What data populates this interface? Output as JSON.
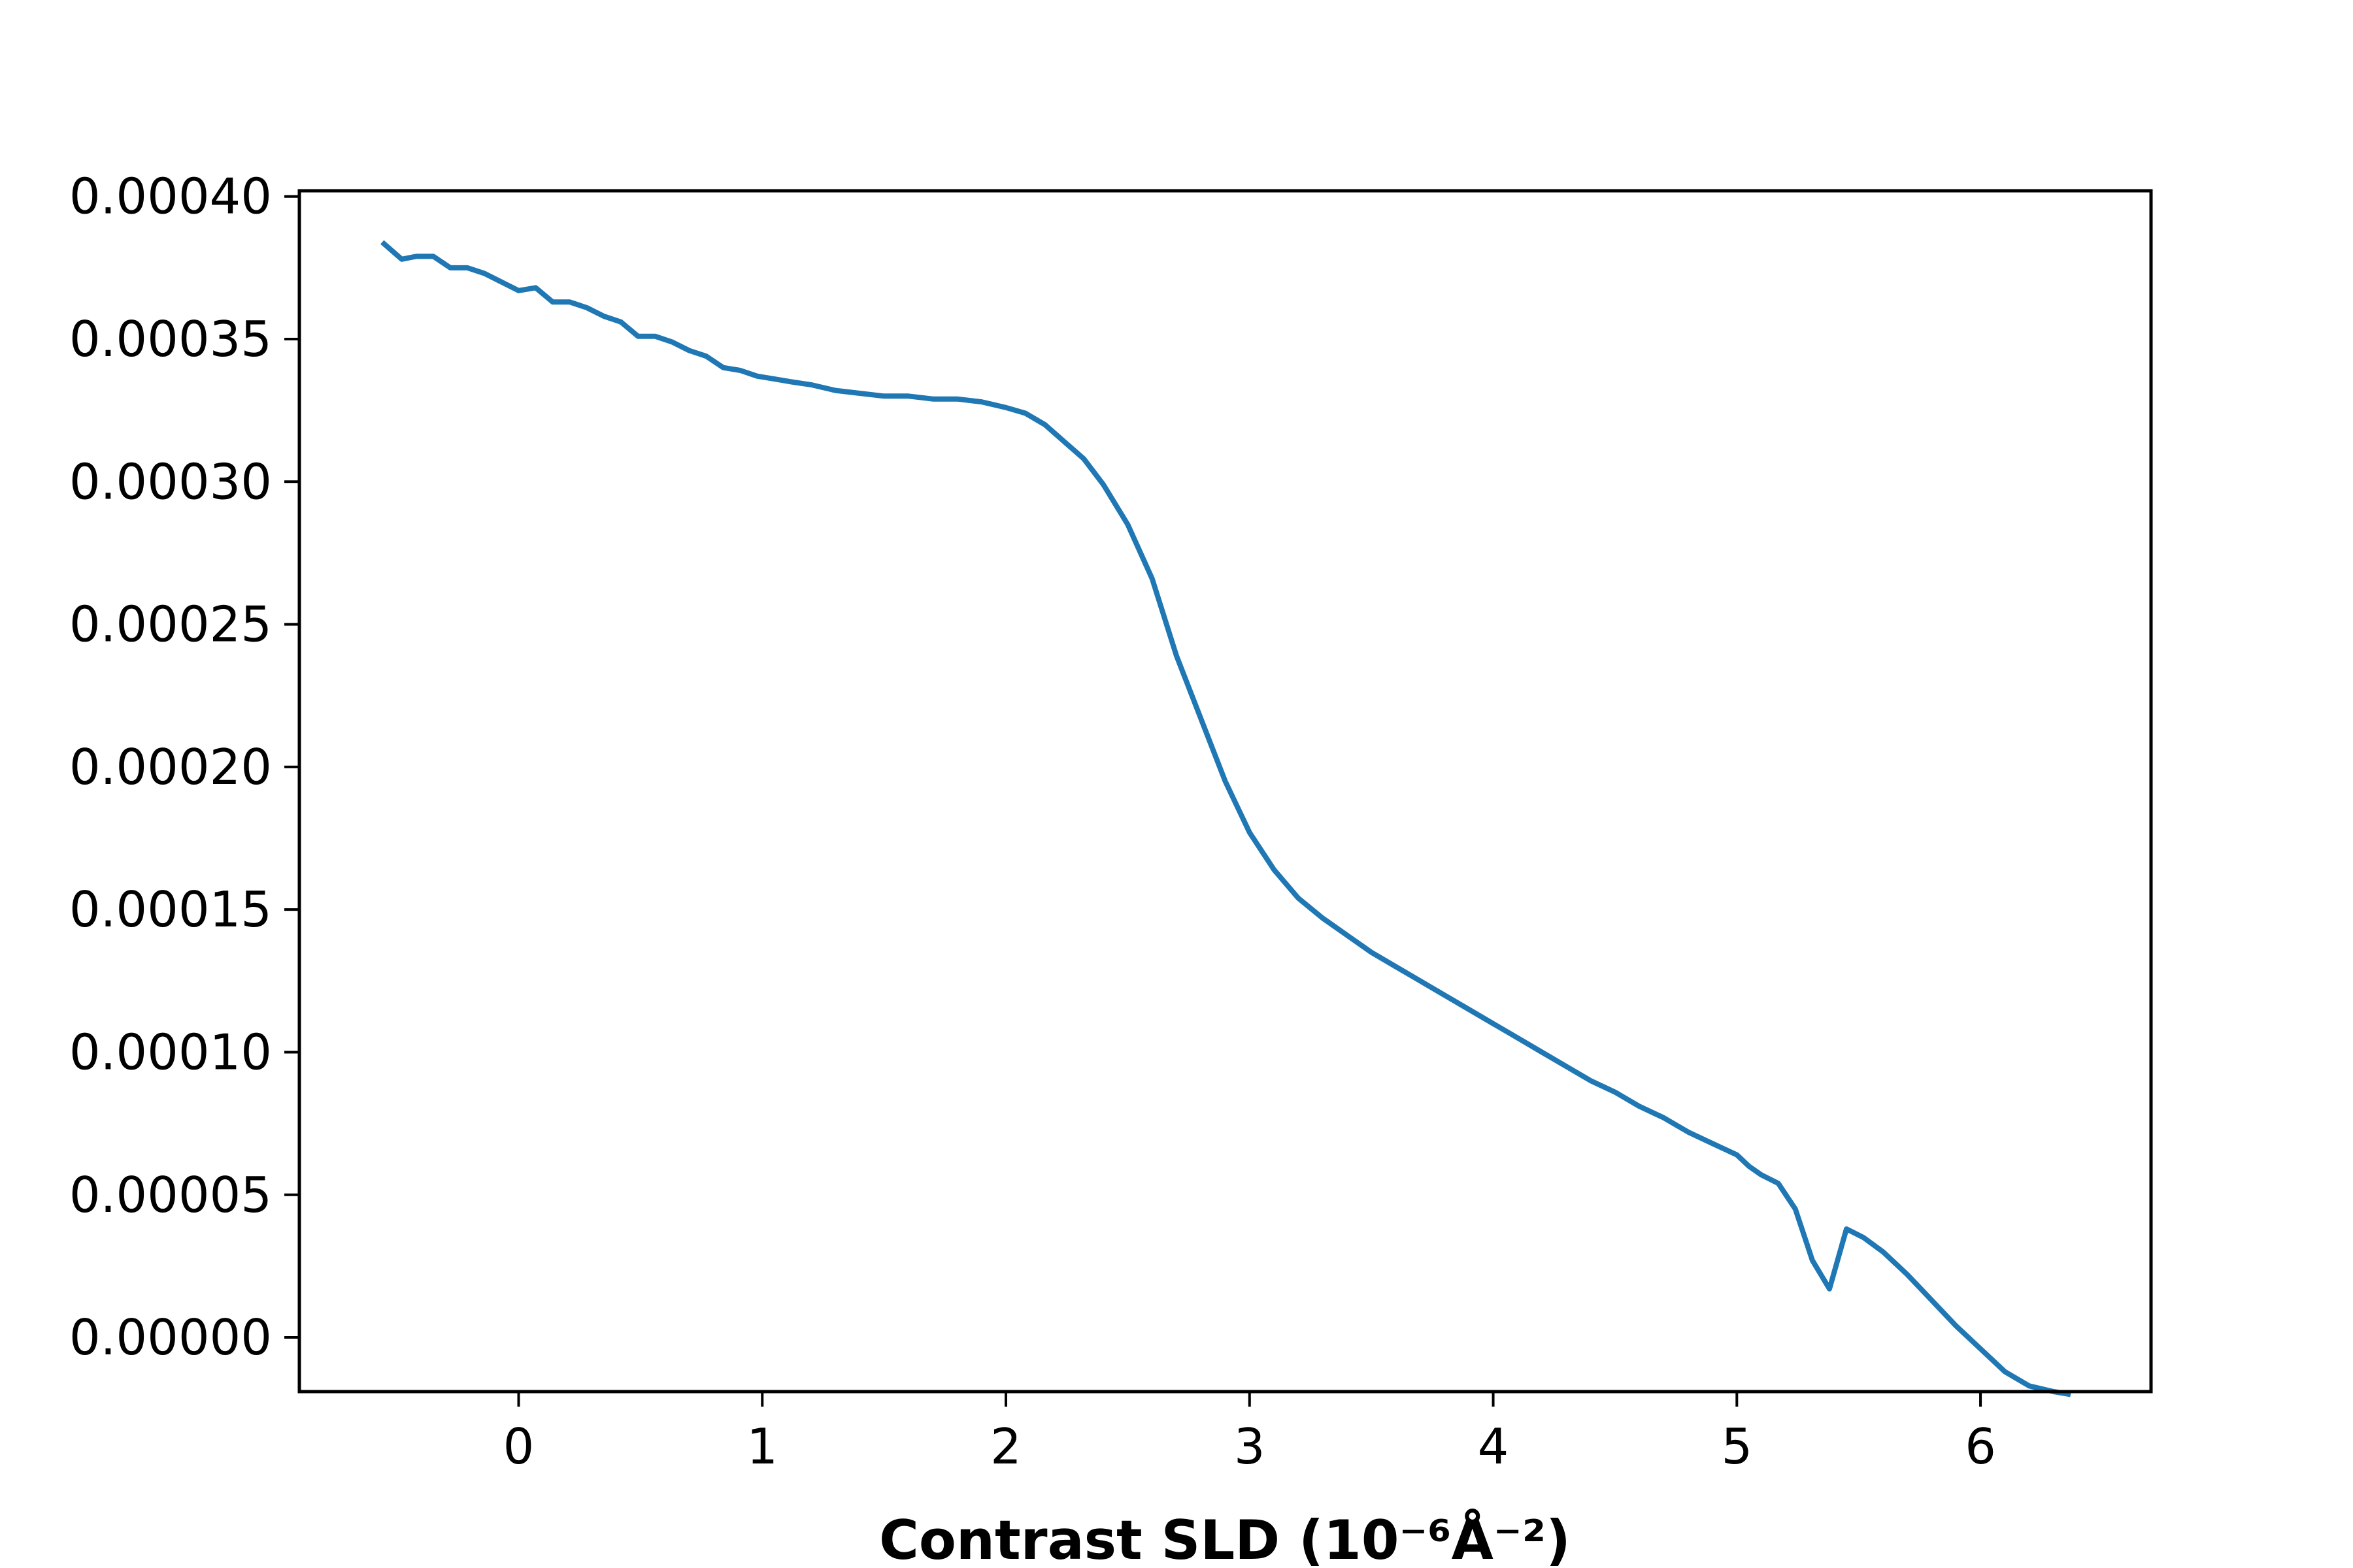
{
  "chart_data": {
    "type": "line",
    "title": "",
    "xlabel": "Contrast SLD (10⁻⁶Å⁻²)",
    "ylabel": "",
    "xlim": [
      -0.9,
      6.7
    ],
    "ylim": [
      -1.9e-05,
      0.000402
    ],
    "x_ticks": [
      0,
      1,
      2,
      3,
      4,
      5,
      6
    ],
    "x_tick_labels": [
      "0",
      "1",
      "2",
      "3",
      "4",
      "5",
      "6"
    ],
    "y_ticks": [
      0,
      5e-05,
      0.0001,
      0.00015,
      0.0002,
      0.00025,
      0.0003,
      0.00035,
      0.0004
    ],
    "y_tick_labels": [
      "0.00000",
      "0.00005",
      "0.00010",
      "0.00015",
      "0.00020",
      "0.00025",
      "0.00030",
      "0.00035",
      "0.00040"
    ],
    "grid": false,
    "line_color": "#1f77b4",
    "series": [
      {
        "x": [
          -0.56,
          -0.48,
          -0.42,
          -0.35,
          -0.28,
          -0.21,
          -0.14,
          -0.07,
          0.0,
          0.07,
          0.14,
          0.21,
          0.28,
          0.35,
          0.42,
          0.49,
          0.56,
          0.63,
          0.7,
          0.77,
          0.84,
          0.91,
          0.98,
          1.05,
          1.12,
          1.2,
          1.3,
          1.4,
          1.5,
          1.6,
          1.7,
          1.8,
          1.9,
          2.0,
          2.08,
          2.16,
          2.24,
          2.32,
          2.4,
          2.5,
          2.6,
          2.7,
          2.8,
          2.9,
          3.0,
          3.1,
          3.2,
          3.3,
          3.4,
          3.5,
          3.6,
          3.7,
          3.8,
          3.9,
          4.0,
          4.1,
          4.2,
          4.3,
          4.4,
          4.5,
          4.6,
          4.7,
          4.8,
          4.9,
          5.0,
          5.05,
          5.1,
          5.17,
          5.24,
          5.31,
          5.38,
          5.45,
          5.52,
          5.6,
          5.7,
          5.8,
          5.9,
          6.0,
          6.1,
          6.2,
          6.3,
          6.37
        ],
        "y": [
          0.000384,
          0.000378,
          0.000379,
          0.000379,
          0.000375,
          0.000375,
          0.000373,
          0.00037,
          0.000367,
          0.000368,
          0.000363,
          0.000363,
          0.000361,
          0.000358,
          0.000356,
          0.000351,
          0.000351,
          0.000349,
          0.000346,
          0.000344,
          0.00034,
          0.000339,
          0.000337,
          0.000336,
          0.000335,
          0.000334,
          0.000332,
          0.000331,
          0.00033,
          0.00033,
          0.000329,
          0.000329,
          0.000328,
          0.000326,
          0.000324,
          0.00032,
          0.000314,
          0.000308,
          0.000299,
          0.000285,
          0.000266,
          0.000239,
          0.000217,
          0.000195,
          0.000177,
          0.000164,
          0.000154,
          0.000147,
          0.000141,
          0.000135,
          0.00013,
          0.000125,
          0.00012,
          0.000115,
          0.00011,
          0.000105,
          0.0001,
          9.5e-05,
          9e-05,
          8.6e-05,
          8.1e-05,
          7.7e-05,
          7.2e-05,
          6.8e-05,
          6.4e-05,
          6e-05,
          5.7e-05,
          5.4e-05,
          4.5e-05,
          2.7e-05,
          1.7e-05,
          3.8e-05,
          3.5e-05,
          3e-05,
          2.2e-05,
          1.3e-05,
          4e-06,
          -4e-06,
          -1.2e-05,
          -1.7e-05,
          -1.9e-05,
          -2e-05
        ]
      }
    ]
  }
}
